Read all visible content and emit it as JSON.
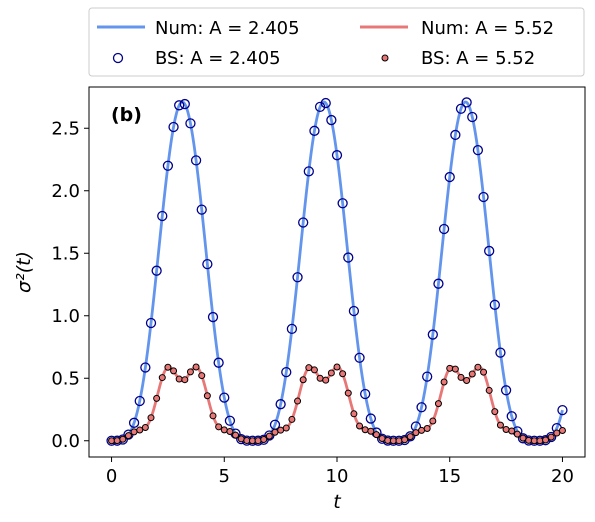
{
  "chart_data": {
    "type": "line",
    "panel_label": "(b)",
    "xlabel": "t",
    "ylabel": "σ²(t)",
    "xlim": [
      -1,
      21
    ],
    "ylim": [
      -0.13,
      2.83
    ],
    "xticks": [
      0,
      5,
      10,
      15,
      20
    ],
    "yticks": [
      0.0,
      0.5,
      1.0,
      1.5,
      2.0,
      2.5
    ],
    "xtick_labels": [
      "0",
      "5",
      "10",
      "15",
      "20"
    ],
    "ytick_labels": [
      "0.0",
      "0.5",
      "1.0",
      "1.5",
      "2.0",
      "2.5"
    ],
    "legend_position": "top (above plot), 2 columns",
    "series": [
      {
        "name": "Num: A = 2.405",
        "kind": "line",
        "color": "#6495ED",
        "model": {
          "amplitude": 2.71,
          "period": 6.28,
          "harmonic": 0
        },
        "t_range": [
          0,
          20
        ]
      },
      {
        "name": "Num: A = 5.52",
        "kind": "line",
        "color": "#E87878",
        "model": {
          "amplitude": 0.6,
          "period": 6.28,
          "harmonic": 0.2
        },
        "t_range": [
          0,
          20
        ]
      },
      {
        "name": "BS: A = 2.405",
        "kind": "markers",
        "color": "#00008B",
        "fill": "none",
        "model": {
          "amplitude": 2.71,
          "period": 6.28,
          "harmonic": 0
        },
        "t_step": 0.25,
        "t_range": [
          0,
          20
        ]
      },
      {
        "name": "BS: A = 5.52",
        "kind": "markers",
        "color": "#000000",
        "fill": "#E87878",
        "model": {
          "amplitude": 0.6,
          "period": 6.28,
          "harmonic": 0.2
        },
        "t_step": 0.25,
        "t_range": [
          0,
          20
        ]
      }
    ]
  },
  "legend": {
    "items": [
      "Num: A = 2.405",
      "Num: A = 5.52",
      "BS: A = 2.405",
      "BS: A = 5.52"
    ]
  }
}
